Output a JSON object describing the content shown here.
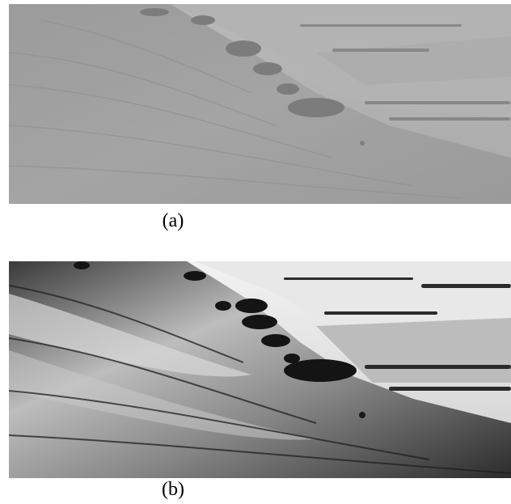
{
  "figure": {
    "panels": [
      {
        "label": "(a)",
        "description_icon": "landscape-photo-low-contrast"
      },
      {
        "label": "(b)",
        "description_icon": "landscape-photo-enhanced-contrast"
      }
    ]
  }
}
